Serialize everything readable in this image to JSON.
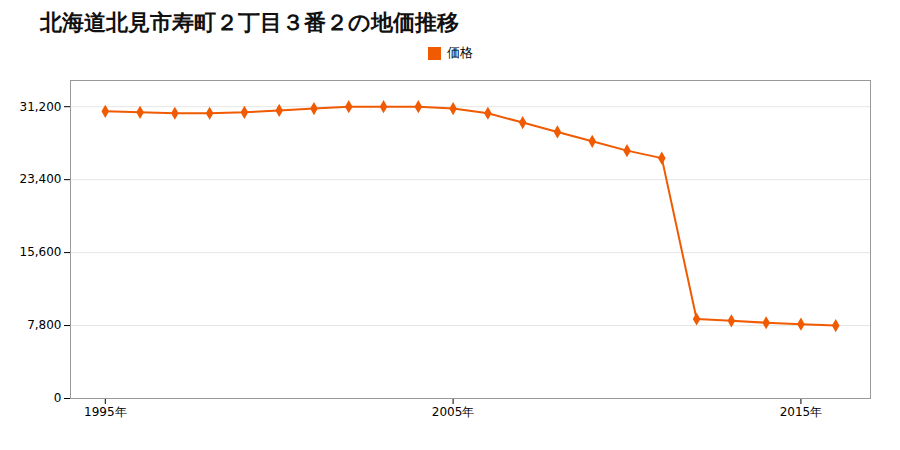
{
  "chart_data": {
    "type": "line",
    "title": "北海道北見市寿町２丁目３番２の地価推移",
    "x": [
      1995,
      1996,
      1997,
      1998,
      1999,
      2000,
      2001,
      2002,
      2003,
      2004,
      2005,
      2006,
      2007,
      2008,
      2009,
      2010,
      2011,
      2012,
      2013,
      2014,
      2015,
      2016
    ],
    "series": [
      {
        "name": "価格",
        "color": "#f05a00",
        "marker": "diamond",
        "values": [
          30700,
          30600,
          30500,
          30500,
          30600,
          30800,
          31000,
          31200,
          31200,
          31200,
          31000,
          30500,
          29500,
          28500,
          27500,
          26500,
          25700,
          8500,
          8300,
          8100,
          7950,
          7800
        ]
      }
    ],
    "xlim": [
      1994,
      2017
    ],
    "xticks": [
      {
        "value": 1995,
        "label": "1995年"
      },
      {
        "value": 2005,
        "label": "2005年"
      },
      {
        "value": 2015,
        "label": "2015年"
      }
    ],
    "ylim": [
      0,
      34000
    ],
    "yticks": [
      0,
      {
        "value": 7800,
        "label": "7,800"
      },
      {
        "value": 15600,
        "label": "15,600"
      },
      {
        "value": 23400,
        "label": "23,400"
      },
      {
        "value": 31200,
        "label": "31,200"
      }
    ],
    "grid": "y",
    "legend": "top"
  }
}
